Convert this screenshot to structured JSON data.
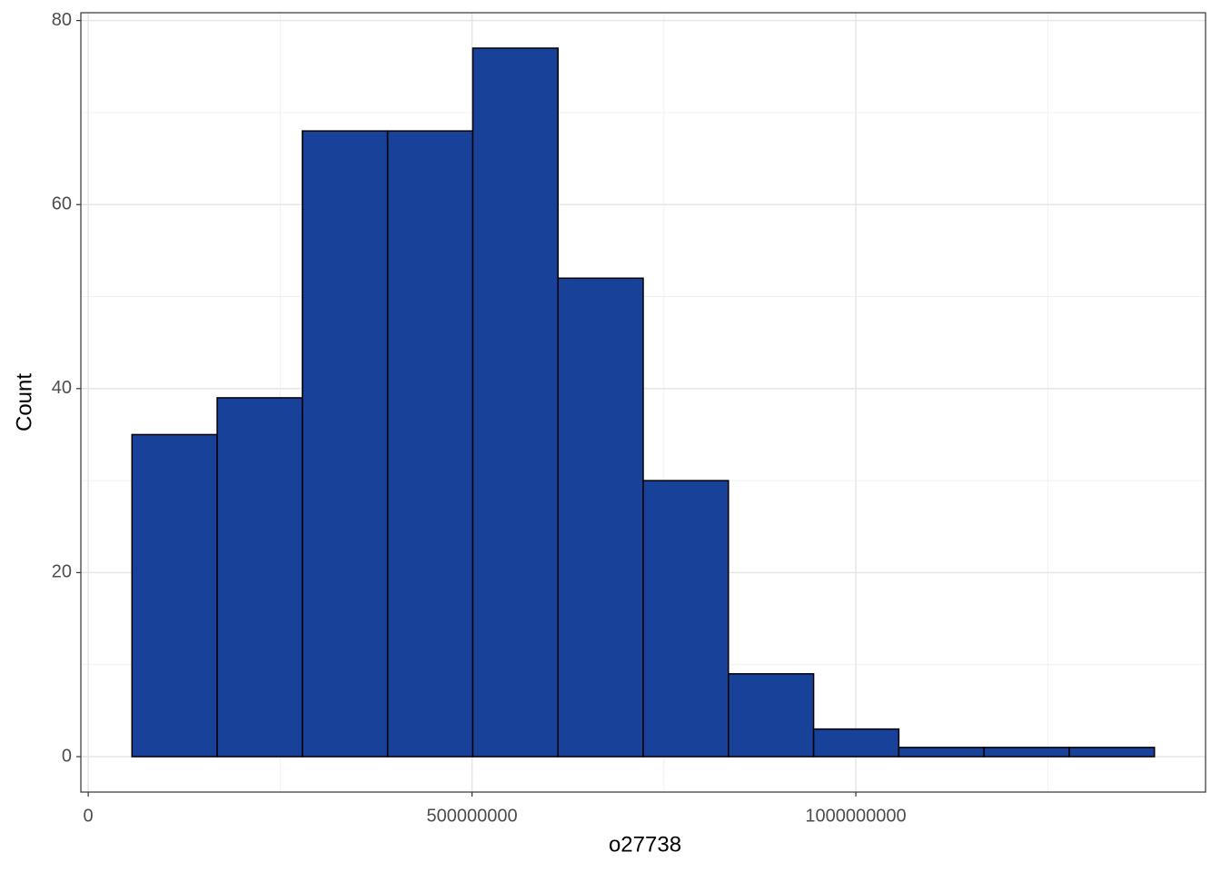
{
  "chart_data": {
    "type": "histogram",
    "x_label": "o27738",
    "y_label": "Count",
    "bins": [
      57000000,
      168000000,
      279000000,
      390000000,
      501000000,
      612000000,
      723000000,
      834000000,
      945000000,
      1056000000,
      1167000000,
      1278000000,
      1389000000
    ],
    "values": [
      35,
      39,
      68,
      68,
      77,
      52,
      30,
      9,
      3,
      1,
      1,
      1
    ],
    "color": "#18419a",
    "edge_color": "#000000",
    "xlim": [
      -9600000,
      1455600000
    ],
    "xticks": [
      0,
      500000000,
      1000000000
    ],
    "ylim": [
      -3.85,
      80.85
    ],
    "yticks": [
      0,
      20,
      40,
      60,
      80
    ],
    "grid": true
  }
}
